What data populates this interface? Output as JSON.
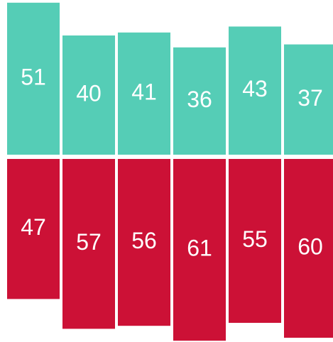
{
  "chart_data": {
    "type": "bar",
    "stacked": true,
    "diverging": true,
    "orientation": "vertical",
    "categories": [
      "",
      "",
      "",
      "",
      "",
      ""
    ],
    "series": [
      {
        "values": [
          51,
          40,
          41,
          36,
          43,
          37
        ],
        "color": "#55cdb6"
      },
      {
        "values": [
          47,
          57,
          56,
          61,
          55,
          60
        ],
        "color": "#cc1136"
      }
    ],
    "data_labels": true,
    "axes_visible": false,
    "grid": false,
    "legend": "none",
    "title": "",
    "xlabel": "",
    "ylabel": ""
  }
}
